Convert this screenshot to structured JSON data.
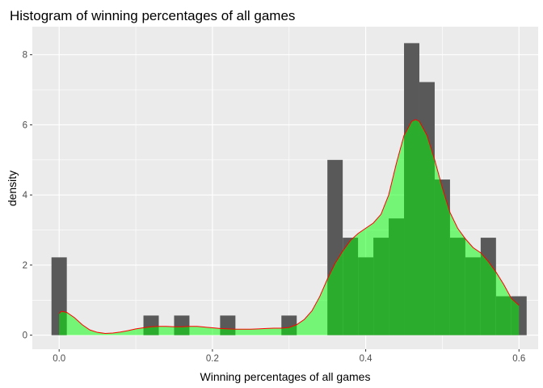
{
  "chart_data": {
    "type": "bar",
    "title": "Histogram of winning percentages of all games",
    "xlabel": "Winning percentages of all games",
    "ylabel": "density",
    "xlim": [
      -0.035,
      0.625
    ],
    "ylim": [
      -0.4,
      8.8
    ],
    "x_ticks": [
      0.0,
      0.2,
      0.4,
      0.6
    ],
    "x_tick_labels": [
      "0.0",
      "0.2",
      "0.4",
      "0.6"
    ],
    "y_ticks": [
      0,
      2,
      4,
      6,
      8
    ],
    "y_tick_labels": [
      "0",
      "2",
      "4",
      "6",
      "8"
    ],
    "grid": true,
    "legend": "none",
    "colors": {
      "panel": "#ebebeb",
      "grid_major": "#ffffff",
      "histogram": "#595959",
      "density_fill": "#00ff00",
      "density_fill_opacity": 0.5,
      "density_line": "#ff0000",
      "tick_label": "#4d4d4d"
    },
    "series": [
      {
        "type": "histogram",
        "bin_width": 0.02,
        "bins": [
          {
            "x": 0.0,
            "value": 2.22
          },
          {
            "x": 0.02,
            "value": 0
          },
          {
            "x": 0.04,
            "value": 0
          },
          {
            "x": 0.06,
            "value": 0
          },
          {
            "x": 0.08,
            "value": 0
          },
          {
            "x": 0.1,
            "value": 0
          },
          {
            "x": 0.12,
            "value": 0.56
          },
          {
            "x": 0.14,
            "value": 0
          },
          {
            "x": 0.16,
            "value": 0.56
          },
          {
            "x": 0.18,
            "value": 0
          },
          {
            "x": 0.2,
            "value": 0
          },
          {
            "x": 0.22,
            "value": 0.56
          },
          {
            "x": 0.24,
            "value": 0
          },
          {
            "x": 0.26,
            "value": 0
          },
          {
            "x": 0.28,
            "value": 0
          },
          {
            "x": 0.3,
            "value": 0.56
          },
          {
            "x": 0.32,
            "value": 0
          },
          {
            "x": 0.34,
            "value": 0
          },
          {
            "x": 0.36,
            "value": 5.0
          },
          {
            "x": 0.38,
            "value": 2.78
          },
          {
            "x": 0.4,
            "value": 2.22
          },
          {
            "x": 0.42,
            "value": 2.78
          },
          {
            "x": 0.44,
            "value": 3.33
          },
          {
            "x": 0.46,
            "value": 8.33
          },
          {
            "x": 0.48,
            "value": 7.22
          },
          {
            "x": 0.5,
            "value": 4.44
          },
          {
            "x": 0.52,
            "value": 2.78
          },
          {
            "x": 0.54,
            "value": 2.22
          },
          {
            "x": 0.56,
            "value": 2.78
          },
          {
            "x": 0.58,
            "value": 1.11
          },
          {
            "x": 0.6,
            "value": 1.11
          }
        ]
      },
      {
        "type": "density",
        "x": [
          0.0,
          0.003,
          0.01,
          0.02,
          0.03,
          0.04,
          0.05,
          0.06,
          0.07,
          0.08,
          0.09,
          0.1,
          0.11,
          0.12,
          0.13,
          0.14,
          0.15,
          0.16,
          0.17,
          0.18,
          0.19,
          0.2,
          0.21,
          0.22,
          0.23,
          0.24,
          0.25,
          0.26,
          0.27,
          0.28,
          0.29,
          0.3,
          0.31,
          0.32,
          0.33,
          0.34,
          0.35,
          0.36,
          0.37,
          0.38,
          0.39,
          0.4,
          0.41,
          0.42,
          0.43,
          0.44,
          0.45,
          0.46,
          0.465,
          0.47,
          0.48,
          0.49,
          0.5,
          0.51,
          0.52,
          0.53,
          0.54,
          0.55,
          0.56,
          0.57,
          0.58,
          0.59,
          0.6
        ],
        "y": [
          0.62,
          0.68,
          0.65,
          0.5,
          0.3,
          0.15,
          0.08,
          0.05,
          0.06,
          0.09,
          0.13,
          0.18,
          0.21,
          0.24,
          0.25,
          0.25,
          0.24,
          0.24,
          0.25,
          0.25,
          0.23,
          0.21,
          0.19,
          0.18,
          0.17,
          0.17,
          0.17,
          0.18,
          0.19,
          0.2,
          0.2,
          0.22,
          0.3,
          0.45,
          0.7,
          1.1,
          1.6,
          2.05,
          2.4,
          2.7,
          2.9,
          3.05,
          3.2,
          3.45,
          4.0,
          4.9,
          5.7,
          6.1,
          6.15,
          6.1,
          5.7,
          5.0,
          4.2,
          3.5,
          3.05,
          2.75,
          2.5,
          2.35,
          2.1,
          1.8,
          1.45,
          1.05,
          0.85
        ]
      }
    ]
  }
}
